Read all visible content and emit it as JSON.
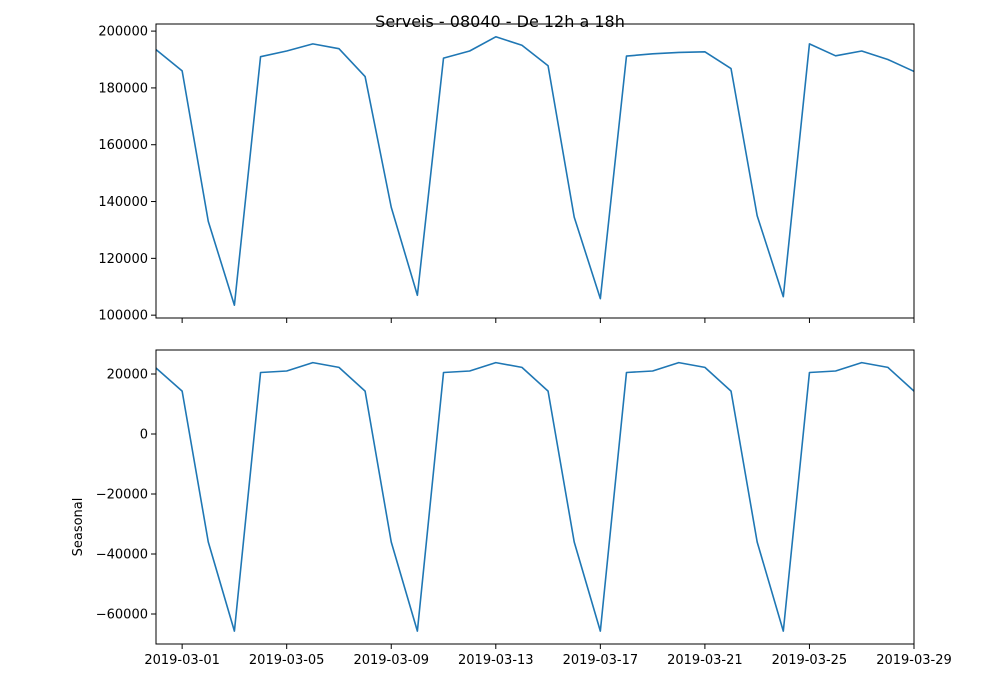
{
  "title": "Serveis - 08040 - De 12h a 18h",
  "chart_data": [
    {
      "type": "line",
      "ylabel": "",
      "x": [
        "2019-02-28",
        "2019-03-01",
        "2019-03-02",
        "2019-03-03",
        "2019-03-04",
        "2019-03-05",
        "2019-03-06",
        "2019-03-07",
        "2019-03-08",
        "2019-03-09",
        "2019-03-10",
        "2019-03-11",
        "2019-03-12",
        "2019-03-13",
        "2019-03-14",
        "2019-03-15",
        "2019-03-16",
        "2019-03-17",
        "2019-03-18",
        "2019-03-19",
        "2019-03-20",
        "2019-03-21",
        "2019-03-22",
        "2019-03-23",
        "2019-03-24",
        "2019-03-25",
        "2019-03-26",
        "2019-03-27",
        "2019-03-28",
        "2019-03-29"
      ],
      "values": [
        193500,
        186000,
        133000,
        103500,
        191000,
        193000,
        195500,
        193800,
        184000,
        138000,
        107000,
        190500,
        193000,
        198000,
        195000,
        187800,
        134500,
        105800,
        191200,
        192000,
        192500,
        192700,
        186800,
        135000,
        106500,
        195500,
        191300,
        193000,
        190000,
        185800
      ],
      "xlim": [
        "2019-02-28",
        "2019-03-29"
      ],
      "ylim": [
        99000,
        202500
      ],
      "xticks": [],
      "yticks": [
        100000,
        120000,
        140000,
        160000,
        180000,
        200000
      ],
      "grid": false,
      "color": "#1f77b4"
    },
    {
      "type": "line",
      "ylabel": "Seasonal",
      "x": [
        "2019-02-28",
        "2019-03-01",
        "2019-03-02",
        "2019-03-03",
        "2019-03-04",
        "2019-03-05",
        "2019-03-06",
        "2019-03-07",
        "2019-03-08",
        "2019-03-09",
        "2019-03-10",
        "2019-03-11",
        "2019-03-12",
        "2019-03-13",
        "2019-03-14",
        "2019-03-15",
        "2019-03-16",
        "2019-03-17",
        "2019-03-18",
        "2019-03-19",
        "2019-03-20",
        "2019-03-21",
        "2019-03-22",
        "2019-03-23",
        "2019-03-24",
        "2019-03-25",
        "2019-03-26",
        "2019-03-27",
        "2019-03-28",
        "2019-03-29"
      ],
      "values": [
        22000,
        14300,
        -36000,
        -65700,
        20500,
        21000,
        23800,
        22200,
        14300,
        -36000,
        -65700,
        20500,
        21000,
        23800,
        22200,
        14300,
        -36000,
        -65700,
        20500,
        21000,
        23800,
        22200,
        14300,
        -36000,
        -65700,
        20500,
        21000,
        23800,
        22200,
        14300
      ],
      "xlim": [
        "2019-02-28",
        "2019-03-29"
      ],
      "ylim": [
        -70000,
        28000
      ],
      "xticks": [
        "2019-03-01",
        "2019-03-05",
        "2019-03-09",
        "2019-03-13",
        "2019-03-17",
        "2019-03-21",
        "2019-03-25",
        "2019-03-29"
      ],
      "yticks": [
        -60000,
        -40000,
        -20000,
        0,
        20000
      ],
      "grid": false,
      "color": "#1f77b4"
    }
  ]
}
